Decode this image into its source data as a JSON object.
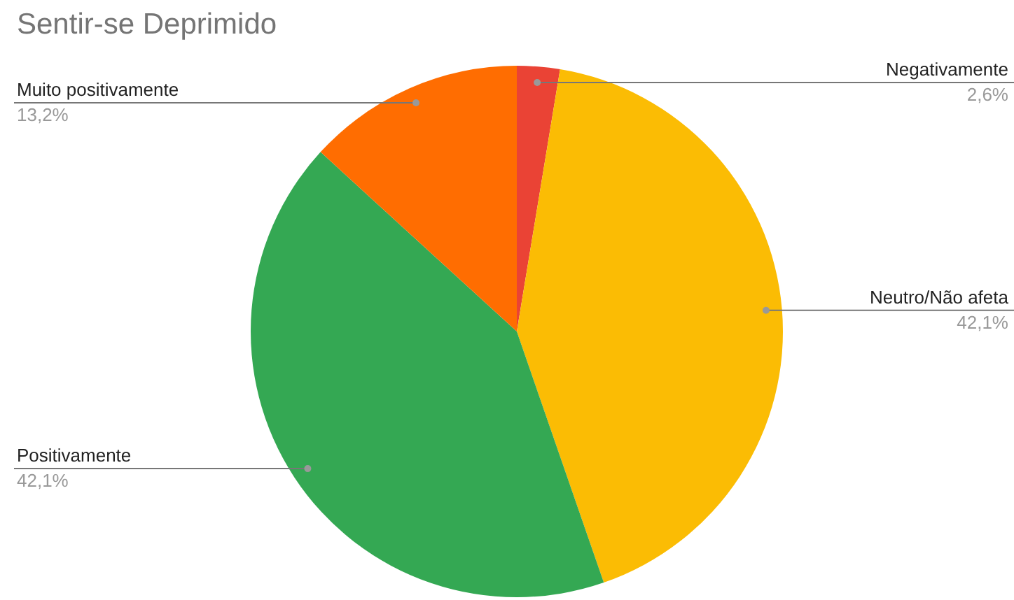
{
  "chart_data": {
    "type": "pie",
    "title": "Sentir-se Deprimido",
    "categories": [
      "Negativamente",
      "Neutro/Não afeta",
      "Positivamente",
      "Muito positivamente"
    ],
    "values": [
      2.6,
      42.1,
      42.1,
      13.2
    ],
    "colors": [
      "#ea4335",
      "#fbbc04",
      "#34a853",
      "#ff6d01"
    ],
    "value_labels": [
      "2,6%",
      "42,1%",
      "42,1%",
      "13,2%"
    ],
    "legend": false
  }
}
